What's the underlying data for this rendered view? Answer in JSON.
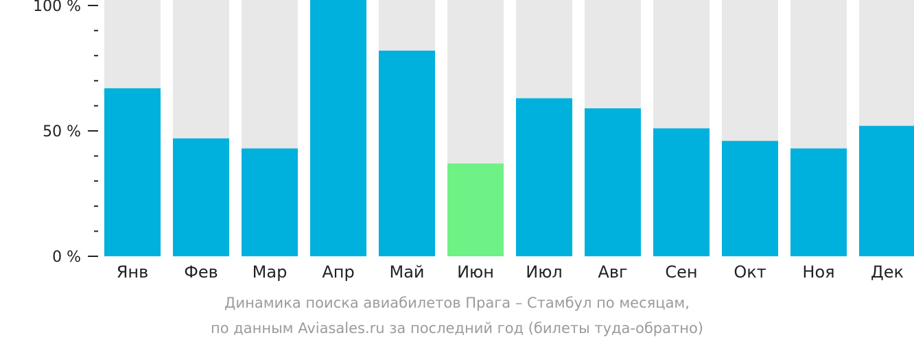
{
  "chart_data": {
    "type": "bar",
    "categories": [
      "Янв",
      "Фев",
      "Мар",
      "Апр",
      "Май",
      "Июн",
      "Июл",
      "Авг",
      "Сен",
      "Окт",
      "Ноя",
      "Дек"
    ],
    "values": [
      67,
      47,
      43,
      105,
      82,
      37,
      63,
      59,
      51,
      46,
      43,
      52
    ],
    "highlight_index": 5,
    "ylim": [
      0,
      100
    ],
    "yticks": [
      {
        "value": 100,
        "label": "100 %"
      },
      {
        "value": 50,
        "label": "50 %"
      },
      {
        "value": 0,
        "label": "0 %"
      }
    ],
    "minor_ticks": [
      10,
      20,
      30,
      40,
      60,
      70,
      80,
      90
    ],
    "colors": {
      "bar": "#00b0dd",
      "highlight": "#6ef285",
      "background_bar": "#e8e8e8",
      "axis": "#222222"
    },
    "caption_line1": "Динамика поиска авиабилетов Прага – Стамбул по месяцам,",
    "caption_line2": "по данным Aviasales.ru за последний год (билеты туда-обратно)"
  }
}
